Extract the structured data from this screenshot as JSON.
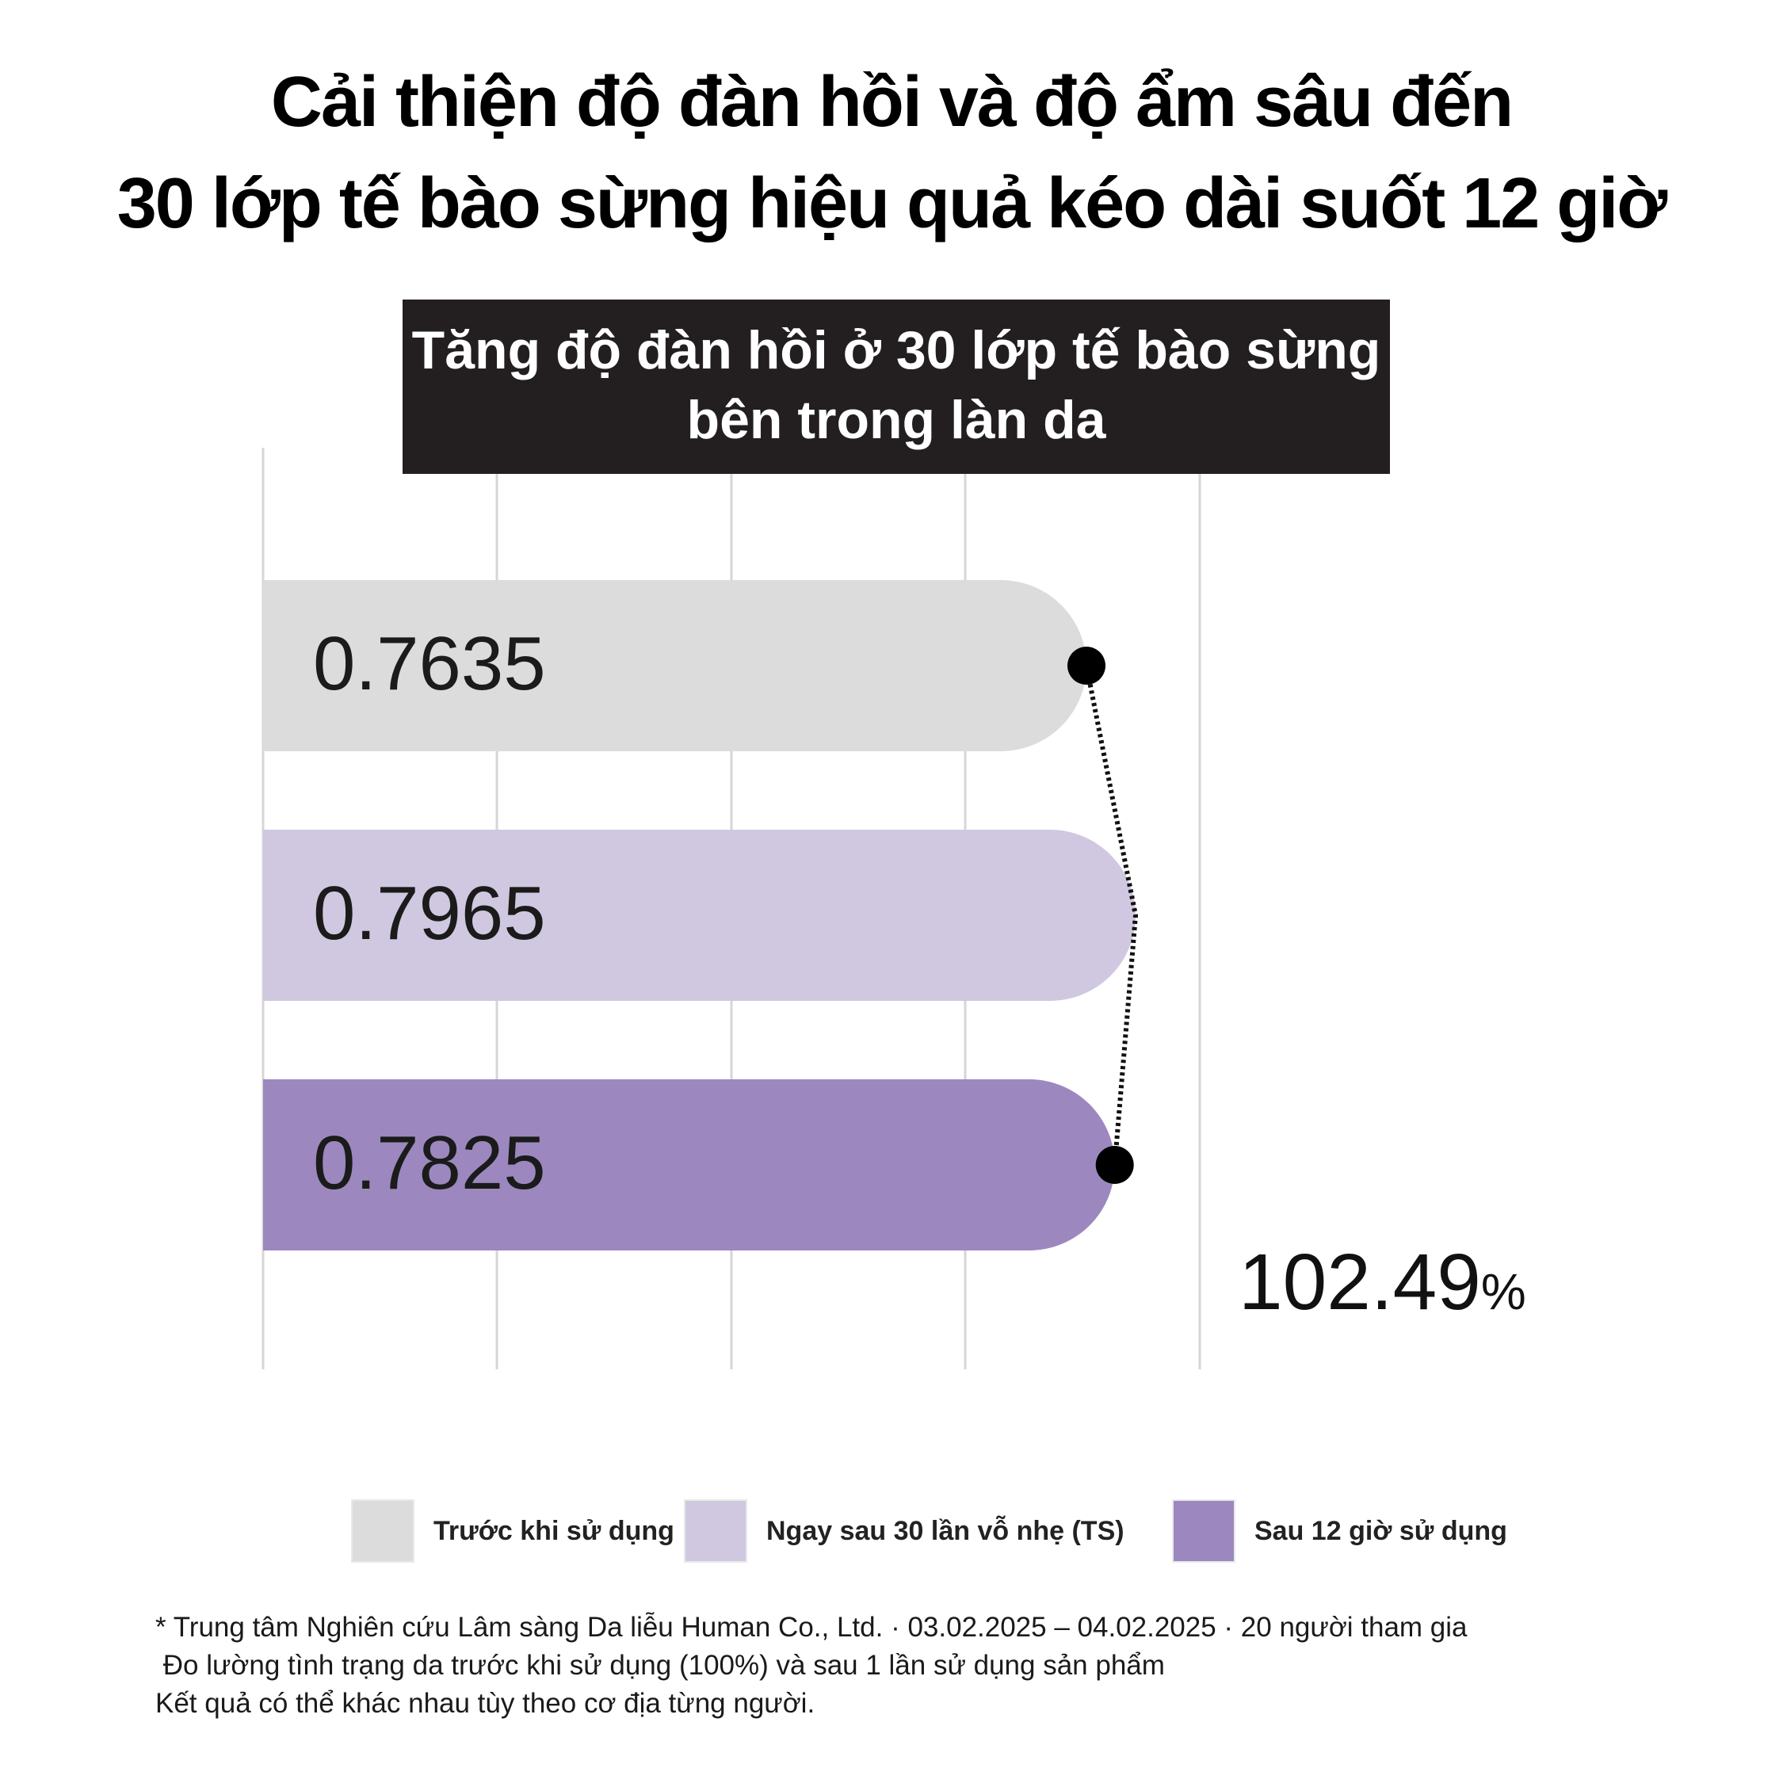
{
  "headline": {
    "line1": "Cải thiện độ đàn hồi và độ ẩm sâu đến",
    "line2": "30 lớp tế bào sừng hiệu quả kéo dài suốt 12 giờ"
  },
  "chart_data": {
    "type": "bar",
    "orientation": "horizontal",
    "title_lines": [
      "Tăng độ đàn hồi ở 30 lớp tế bào sừng",
      "bên trong làn da"
    ],
    "categories": [
      "Trước khi sử dụng",
      "Ngay sau 30 lần vỗ nhẹ (TS)",
      "Sau 12 giờ sử dụng"
    ],
    "values": [
      0.7635,
      0.7965,
      0.7825
    ],
    "value_labels": [
      "0.7635",
      "0.7965",
      "0.7825"
    ],
    "colors": [
      "#dcdcdc",
      "#d0c8e0",
      "#9c88bf"
    ],
    "annotation": "102.49%",
    "connector": "dotted",
    "grid": true,
    "xlim": [
      0.66,
      0.805
    ]
  },
  "legend": {
    "items": [
      {
        "label": "Trước khi sử dụng",
        "color": "#dcdcdc"
      },
      {
        "label": "Ngay sau 30 lần vỗ nhẹ (TS)",
        "color": "#d0c8e0"
      },
      {
        "label": "Sau 12 giờ sử dụng",
        "color": "#9c88bf"
      }
    ]
  },
  "footnote": {
    "line1": "* Trung tâm Nghiên cứu Lâm sàng Da liễu Human Co., Ltd. · 03.02.2025 – 04.02.2025 · 20 người tham gia",
    "line2": " Đo lường tình trạng da trước khi sử dụng (100%) và sau 1 lần sử dụng sản phẩm",
    "line3": "Kết quả có thể khác nhau tùy theo cơ địa từng người."
  }
}
